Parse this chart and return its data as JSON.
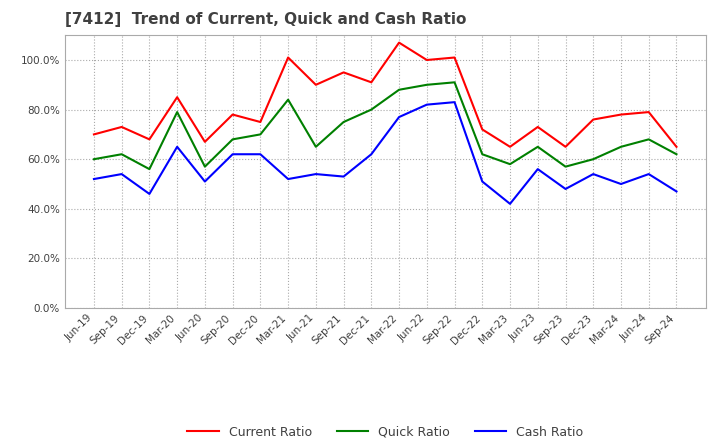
{
  "title": "[7412]  Trend of Current, Quick and Cash Ratio",
  "x_labels": [
    "Jun-19",
    "Sep-19",
    "Dec-19",
    "Mar-20",
    "Jun-20",
    "Sep-20",
    "Dec-20",
    "Mar-21",
    "Jun-21",
    "Sep-21",
    "Dec-21",
    "Mar-22",
    "Jun-22",
    "Sep-22",
    "Dec-22",
    "Mar-23",
    "Jun-23",
    "Sep-23",
    "Dec-23",
    "Mar-24",
    "Jun-24",
    "Sep-24"
  ],
  "current_ratio": [
    70.0,
    73.0,
    68.0,
    85.0,
    67.0,
    78.0,
    75.0,
    101.0,
    90.0,
    95.0,
    91.0,
    107.0,
    100.0,
    101.0,
    72.0,
    65.0,
    73.0,
    65.0,
    76.0,
    78.0,
    79.0,
    65.0
  ],
  "quick_ratio": [
    60.0,
    62.0,
    56.0,
    79.0,
    57.0,
    68.0,
    70.0,
    84.0,
    65.0,
    75.0,
    80.0,
    88.0,
    90.0,
    91.0,
    62.0,
    58.0,
    65.0,
    57.0,
    60.0,
    65.0,
    68.0,
    62.0
  ],
  "cash_ratio": [
    52.0,
    54.0,
    46.0,
    65.0,
    51.0,
    62.0,
    62.0,
    52.0,
    54.0,
    53.0,
    62.0,
    77.0,
    82.0,
    83.0,
    51.0,
    42.0,
    56.0,
    48.0,
    54.0,
    50.0,
    54.0,
    47.0
  ],
  "current_color": "#FF0000",
  "quick_color": "#008000",
  "cash_color": "#0000FF",
  "ylim": [
    0,
    110
  ],
  "yticks": [
    0,
    20,
    40,
    60,
    80,
    100
  ],
  "background_color": "#FFFFFF",
  "plot_bg_color": "#FFFFFF",
  "grid_color": "#AAAAAA",
  "title_color": "#404040",
  "line_width": 1.5
}
